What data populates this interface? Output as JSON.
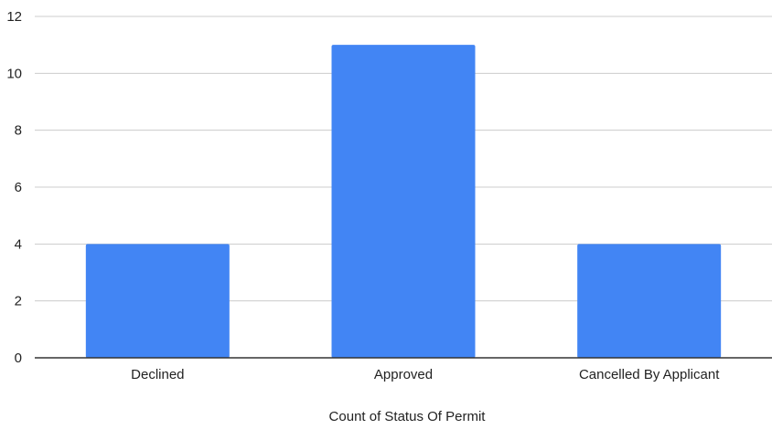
{
  "chart_data": {
    "type": "bar",
    "categories": [
      "Declined",
      "Approved",
      "Cancelled By Applicant"
    ],
    "values": [
      4,
      11,
      4
    ],
    "title": "",
    "xlabel": "Count of Status Of Permit",
    "ylabel": "",
    "ylim": [
      0,
      12
    ],
    "yticks": [
      0,
      2,
      4,
      6,
      8,
      10,
      12
    ],
    "grid": true,
    "legend": "none",
    "colors": {
      "bar": "#4285f4",
      "grid": "#cccccc",
      "baseline": "#333333",
      "text": "#222222"
    }
  }
}
